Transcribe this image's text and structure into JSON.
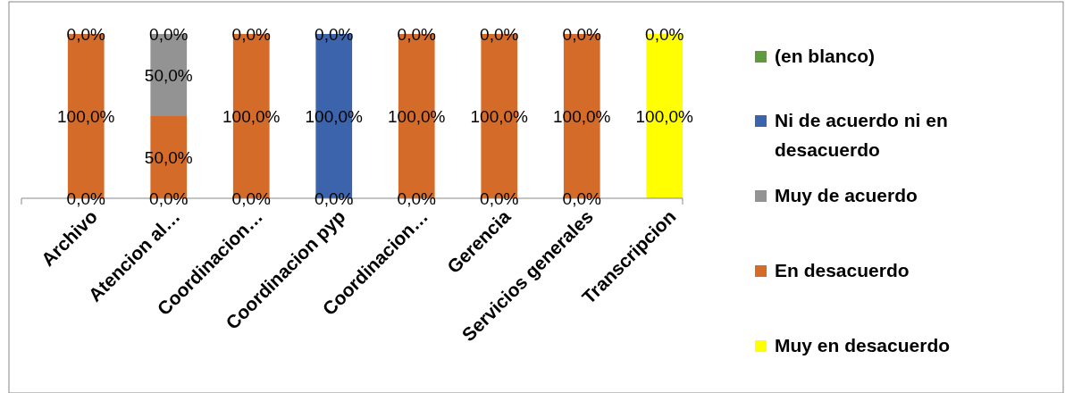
{
  "chart_data": {
    "type": "bar",
    "stacked": true,
    "legend": "right",
    "categories": [
      "Archivo",
      "Atencion al…",
      "Coordinacion…",
      "Coordinacion pyp",
      "Coordinacion…",
      "Gerencia",
      "Servicios generales",
      "Transcripcion"
    ],
    "series": [
      {
        "name": "Muy en desacuerdo",
        "color": "#ffff00",
        "values": [
          0,
          0,
          0,
          0,
          0,
          0,
          0,
          100
        ],
        "value_labels": [
          null,
          null,
          null,
          null,
          null,
          null,
          null,
          "100,0%"
        ]
      },
      {
        "name": "En desacuerdo",
        "color": "#d46b29",
        "values": [
          100,
          50,
          100,
          0,
          100,
          100,
          100,
          null
        ],
        "value_labels": [
          "100,0%",
          "50,0%",
          "100,0%",
          null,
          "100,0%",
          "100,0%",
          "100,0%",
          null
        ]
      },
      {
        "name": "Muy de acuerdo",
        "color": "#939393",
        "values": [
          null,
          50,
          null,
          null,
          null,
          null,
          null,
          null
        ],
        "value_labels": [
          null,
          "50,0%",
          null,
          null,
          null,
          null,
          null,
          null
        ]
      },
      {
        "name": "Ni de acuerdo ni en desacuerdo",
        "color": "#3c64ad",
        "values": [
          0,
          0,
          0,
          100,
          0,
          0,
          0,
          0
        ],
        "value_labels": [
          null,
          null,
          null,
          "100,0%",
          null,
          null,
          null,
          null
        ]
      },
      {
        "name": "(en blanco)",
        "color": "#5f9a3c",
        "values": [
          0,
          0,
          0,
          0,
          0,
          0,
          0,
          0
        ],
        "value_labels": [
          null,
          null,
          null,
          null,
          null,
          null,
          null,
          null
        ]
      }
    ],
    "annotations": [
      {
        "text": "0,0%",
        "x": "Archivo",
        "y": 0
      },
      {
        "text": "0,0%",
        "x": "Atencion al…",
        "y": 0
      },
      {
        "text": "0,0%",
        "x": "Coordinacion…",
        "y": 0
      },
      {
        "text": "0,0%",
        "x": "Coordinacion pyp",
        "y": 0
      },
      {
        "text": "0,0%",
        "x": "Gerencia",
        "y": 0
      },
      {
        "text": "0,0%",
        "x": "Servicios generales",
        "y": 0
      },
      {
        "text": "0,0%",
        "x": "Archivo",
        "y": 100
      },
      {
        "text": "0,0%",
        "x": "Atencion al…",
        "y": 100
      },
      {
        "text": "0,0%",
        "x": "Coordinacion…",
        "y": 100
      },
      {
        "text": "0,0%",
        "x": "Coordinacion pyp",
        "y": 100
      },
      {
        "text": "0,0%",
        "x": "Gerencia",
        "y": 100
      },
      {
        "text": "0,0%",
        "x": "Servicios generales",
        "y": 100
      },
      {
        "text": "0,0%",
        "x": "Transcripcion",
        "y": 100
      }
    ]
  }
}
